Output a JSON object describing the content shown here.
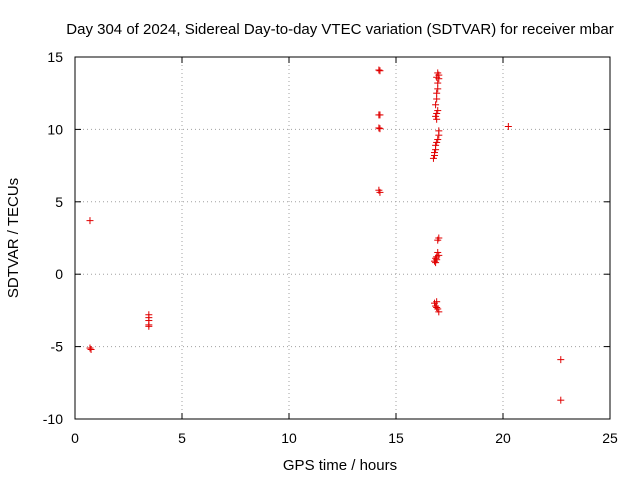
{
  "chart_data": {
    "type": "scatter",
    "title": "Day 304 of 2024, Sidereal Day-to-day VTEC variation (SDTVAR) for receiver mbar",
    "xlabel": "GPS time / hours",
    "ylabel": "SDTVAR / TECUs",
    "xlim": [
      0,
      25
    ],
    "ylim": [
      -10,
      15
    ],
    "xticks": [
      0,
      5,
      10,
      15,
      20,
      25
    ],
    "yticks": [
      -10,
      -5,
      0,
      5,
      10,
      15
    ],
    "xtick_labels": [
      "0",
      "5",
      "10",
      "15",
      "20",
      "25"
    ],
    "ytick_labels": [
      "-10",
      "-5",
      "0",
      "5",
      "10",
      "15"
    ],
    "grid": true,
    "marker": "+",
    "color": "#e00000",
    "series": [
      {
        "name": "SDTVAR",
        "points": [
          [
            0.7,
            3.7
          ],
          [
            0.7,
            -5.1
          ],
          [
            0.75,
            -5.2
          ],
          [
            3.45,
            -2.8
          ],
          [
            3.45,
            -3.0
          ],
          [
            3.45,
            -3.2
          ],
          [
            3.45,
            -3.5
          ],
          [
            3.45,
            -3.6
          ],
          [
            14.2,
            14.1
          ],
          [
            14.25,
            14.05
          ],
          [
            14.2,
            11.0
          ],
          [
            14.25,
            11.0
          ],
          [
            14.2,
            10.1
          ],
          [
            14.25,
            10.05
          ],
          [
            14.2,
            5.8
          ],
          [
            14.25,
            5.65
          ],
          [
            16.95,
            13.9
          ],
          [
            17.0,
            13.75
          ],
          [
            16.9,
            13.6
          ],
          [
            17.0,
            13.5
          ],
          [
            16.95,
            13.2
          ],
          [
            16.95,
            12.8
          ],
          [
            16.9,
            12.5
          ],
          [
            16.9,
            12.1
          ],
          [
            16.85,
            11.7
          ],
          [
            16.95,
            11.3
          ],
          [
            16.9,
            11.1
          ],
          [
            16.85,
            10.9
          ],
          [
            16.9,
            10.7
          ],
          [
            17.0,
            9.9
          ],
          [
            17.0,
            9.6
          ],
          [
            16.95,
            9.3
          ],
          [
            16.9,
            9.1
          ],
          [
            16.85,
            8.9
          ],
          [
            16.85,
            8.6
          ],
          [
            16.8,
            8.4
          ],
          [
            16.8,
            8.2
          ],
          [
            16.75,
            8.0
          ],
          [
            17.0,
            2.5
          ],
          [
            16.95,
            2.35
          ],
          [
            16.95,
            1.5
          ],
          [
            17.0,
            1.3
          ],
          [
            16.9,
            1.2
          ],
          [
            16.85,
            1.1
          ],
          [
            16.9,
            1.0
          ],
          [
            16.8,
            0.9
          ],
          [
            16.85,
            0.8
          ],
          [
            16.9,
            -1.9
          ],
          [
            16.8,
            -2.0
          ],
          [
            16.85,
            -2.2
          ],
          [
            16.9,
            -2.3
          ],
          [
            16.95,
            -2.4
          ],
          [
            17.0,
            -2.6
          ],
          [
            20.25,
            10.2
          ],
          [
            22.7,
            -5.9
          ],
          [
            22.7,
            -8.7
          ]
        ]
      }
    ]
  }
}
